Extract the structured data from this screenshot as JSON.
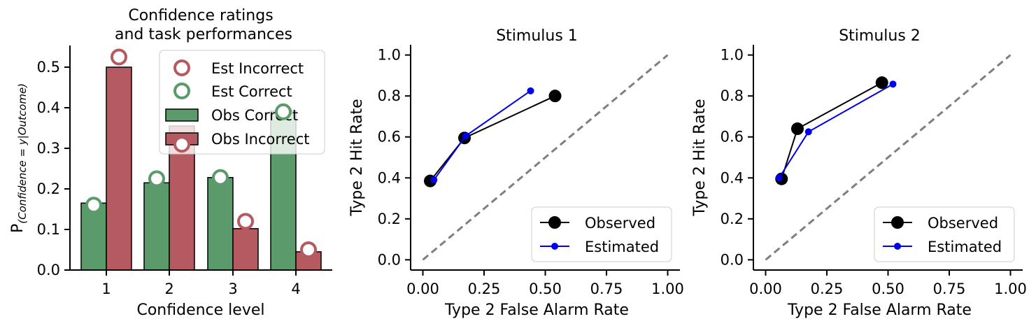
{
  "chart_data": [
    {
      "type": "bar",
      "title": [
        "Confidence ratings",
        "and task performances"
      ],
      "xlabel": "Confidence level",
      "ylabel": {
        "main": "P",
        "sub": "(Confidence = y|Outcome)"
      },
      "categories": [
        "1",
        "2",
        "3",
        "4"
      ],
      "ylim": [
        0,
        0.55
      ],
      "yticks": [
        "0.0",
        "0.1",
        "0.2",
        "0.3",
        "0.4",
        "0.5"
      ],
      "legend_position": "upper right",
      "series": [
        {
          "name": "Obs Correct",
          "kind": "bar",
          "color": "#5b9a6b",
          "values": [
            0.165,
            0.215,
            0.228,
            0.392
          ]
        },
        {
          "name": "Obs Incorrect",
          "kind": "bar",
          "color": "#b55a60",
          "values": [
            0.5,
            0.355,
            0.102,
            0.045
          ]
        },
        {
          "name": "Est Correct",
          "kind": "marker",
          "color": "#5b9a6b",
          "values": [
            0.16,
            0.225,
            0.228,
            0.39
          ]
        },
        {
          "name": "Est Incorrect",
          "kind": "marker",
          "color": "#b55a60",
          "values": [
            0.525,
            0.31,
            0.12,
            0.05
          ]
        }
      ]
    },
    {
      "type": "line",
      "title": "Stimulus 1",
      "xlabel": "Type 2 False Alarm Rate",
      "ylabel": "Type 2 Hit Rate",
      "xlim": [
        -0.05,
        1.05
      ],
      "ylim": [
        -0.05,
        1.05
      ],
      "xticks": [
        "0.00",
        "0.25",
        "0.50",
        "0.75",
        "1.00"
      ],
      "yticks": [
        "0.0",
        "0.2",
        "0.4",
        "0.6",
        "0.8",
        "1.0"
      ],
      "legend_position": "lower right",
      "diagonal": true,
      "series": [
        {
          "name": "Observed",
          "color": "#000000",
          "x": [
            0.03,
            0.17,
            0.54
          ],
          "y": [
            0.385,
            0.595,
            0.8
          ]
        },
        {
          "name": "Estimated",
          "color": "#0000ee",
          "x": [
            0.045,
            0.175,
            0.44
          ],
          "y": [
            0.39,
            0.605,
            0.825
          ]
        }
      ]
    },
    {
      "type": "line",
      "title": "Stimulus 2",
      "xlabel": "Type 2 False Alarm Rate",
      "ylabel": "Type 2 Hit Rate",
      "xlim": [
        -0.05,
        1.05
      ],
      "ylim": [
        -0.05,
        1.05
      ],
      "xticks": [
        "0.00",
        "0.25",
        "0.50",
        "0.75",
        "1.00"
      ],
      "yticks": [
        "0.0",
        "0.2",
        "0.4",
        "0.6",
        "0.8",
        "1.0"
      ],
      "legend_position": "lower right",
      "diagonal": true,
      "series": [
        {
          "name": "Observed",
          "color": "#000000",
          "x": [
            0.065,
            0.13,
            0.475
          ],
          "y": [
            0.395,
            0.64,
            0.865
          ]
        },
        {
          "name": "Estimated",
          "color": "#0000ee",
          "x": [
            0.055,
            0.175,
            0.52
          ],
          "y": [
            0.4,
            0.625,
            0.858
          ]
        }
      ]
    }
  ]
}
